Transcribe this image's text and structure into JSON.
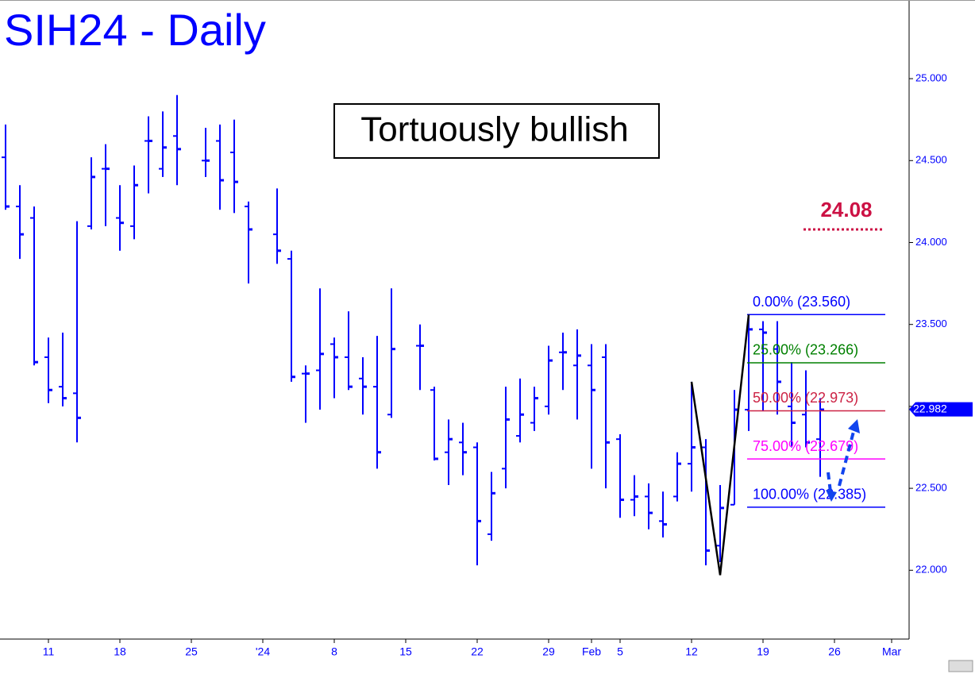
{
  "chart_data": {
    "type": "ohlc",
    "title": "SIH24 - Daily",
    "annotation": "Tortuously bullish",
    "categories": [
      null,
      null,
      null,
      "11",
      null,
      null,
      null,
      null,
      "18",
      null,
      null,
      null,
      null,
      "25",
      null,
      null,
      null,
      null,
      "'24",
      null,
      null,
      null,
      null,
      "8",
      null,
      null,
      null,
      null,
      "15",
      null,
      null,
      null,
      null,
      "22",
      null,
      null,
      null,
      null,
      "29",
      null,
      null,
      "Feb",
      null,
      "5",
      null,
      null,
      null,
      null,
      "12",
      null,
      null,
      null,
      null,
      "19",
      null,
      null,
      null,
      null,
      "26",
      null,
      null,
      null,
      "Mar"
    ],
    "open": [
      24.52,
      24.22,
      24.15,
      23.3,
      23.12,
      23.08,
      24.1,
      24.45,
      24.15,
      24.1,
      24.62,
      24.45,
      24.65,
      null,
      24.5,
      24.62,
      24.55,
      24.22,
      null,
      24.05,
      23.9,
      23.2,
      23.22,
      23.38,
      23.3,
      23.17,
      23.12,
      22.95,
      null,
      23.37,
      23.1,
      22.72,
      22.78,
      22.75,
      22.22,
      22.62,
      22.82,
      22.9,
      23.0,
      23.33,
      23.25,
      23.25,
      23.3,
      22.8,
      22.43,
      22.45,
      22.3,
      22.45,
      22.65,
      22.75,
      22.15,
      22.4,
      22.98,
      23.47,
      23.35,
      23.0,
      22.95,
      22.8,
      null,
      null,
      null,
      null,
      null
    ],
    "high": [
      24.72,
      24.35,
      24.22,
      23.42,
      23.45,
      24.13,
      24.52,
      24.6,
      24.35,
      24.47,
      24.77,
      24.8,
      24.9,
      null,
      24.7,
      24.72,
      24.75,
      24.25,
      null,
      24.33,
      23.95,
      23.25,
      23.72,
      23.42,
      23.58,
      23.3,
      23.43,
      23.72,
      null,
      23.5,
      23.12,
      22.92,
      22.9,
      22.78,
      22.6,
      23.12,
      23.17,
      23.12,
      23.37,
      23.45,
      23.47,
      23.38,
      23.38,
      22.83,
      22.58,
      22.53,
      22.48,
      22.72,
      23.15,
      22.8,
      22.52,
      23.1,
      23.56,
      23.52,
      23.52,
      23.27,
      23.22,
      23.05,
      null,
      null,
      null,
      null,
      null
    ],
    "low": [
      24.2,
      23.9,
      23.25,
      23.02,
      23.0,
      22.78,
      24.08,
      24.1,
      23.95,
      24.02,
      24.3,
      24.4,
      24.35,
      null,
      24.4,
      24.2,
      24.18,
      23.75,
      null,
      23.87,
      23.15,
      22.9,
      22.98,
      23.05,
      23.1,
      22.95,
      22.62,
      22.93,
      null,
      23.1,
      22.67,
      22.52,
      22.58,
      22.03,
      22.18,
      22.5,
      22.78,
      22.85,
      22.95,
      23.1,
      22.92,
      22.62,
      22.5,
      22.32,
      22.33,
      22.25,
      22.2,
      22.42,
      22.48,
      22.03,
      22.05,
      22.4,
      22.85,
      22.97,
      22.95,
      22.75,
      22.75,
      22.57,
      null,
      null,
      null,
      null,
      null
    ],
    "close": [
      24.22,
      24.05,
      23.27,
      23.1,
      23.05,
      22.93,
      24.4,
      24.45,
      24.12,
      24.35,
      24.62,
      24.58,
      24.57,
      null,
      24.5,
      24.38,
      24.37,
      24.08,
      null,
      23.95,
      23.18,
      23.2,
      23.32,
      23.3,
      23.12,
      23.12,
      22.72,
      23.35,
      null,
      23.37,
      22.68,
      22.8,
      22.72,
      22.3,
      22.47,
      22.92,
      22.95,
      23.05,
      23.28,
      23.33,
      23.31,
      23.1,
      22.78,
      22.43,
      22.45,
      22.35,
      22.28,
      22.65,
      22.75,
      22.12,
      22.38,
      22.98,
      23.47,
      23.45,
      23.15,
      22.9,
      22.78,
      22.98,
      null,
      null,
      null,
      null,
      null
    ],
    "color": "#0000ff",
    "ylim": [
      21.58,
      25.48
    ],
    "yticks": [
      {
        "value": 22,
        "label": "22.000"
      },
      {
        "value": 22.5,
        "label": "22.500"
      },
      {
        "value": 23,
        "label": "23.000"
      },
      {
        "value": 23.5,
        "label": "23.500"
      },
      {
        "value": 24,
        "label": "24.000"
      },
      {
        "value": 24.5,
        "label": "24.500"
      },
      {
        "value": 25,
        "label": "25.000"
      }
    ],
    "last_price": {
      "value": 22.982,
      "label": "22.982"
    },
    "target": {
      "value": 24.08,
      "label": "24.08",
      "color": "#cc1144"
    },
    "fib_levels": [
      {
        "label": "0.00% (23.560)",
        "value": 23.56,
        "color": "#0000ff"
      },
      {
        "label": "25.00% (23.266)",
        "value": 23.266,
        "color": "#008000"
      },
      {
        "label": "50.00% (22.973)",
        "value": 22.973,
        "color": "#cc2244"
      },
      {
        "label": "75.00% (22.679)",
        "value": 22.679,
        "color": "#ff00ff"
      },
      {
        "label": "100.00% (22.385)",
        "value": 22.385,
        "color": "#0000ff"
      }
    ],
    "pattern_points": [
      {
        "slot": 48,
        "value": 23.15
      },
      {
        "slot": 50,
        "value": 21.97
      },
      {
        "slot": 52,
        "value": 23.56
      }
    ]
  }
}
